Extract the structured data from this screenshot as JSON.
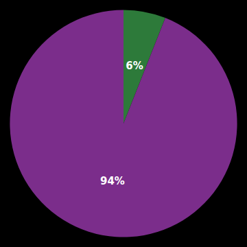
{
  "chart_data": {
    "type": "pie",
    "values": [
      6,
      94
    ],
    "value_labels": [
      "6%",
      "94%"
    ],
    "colors": [
      "#2d7a3a",
      "#7b2d8b"
    ],
    "data_labels": true
  }
}
